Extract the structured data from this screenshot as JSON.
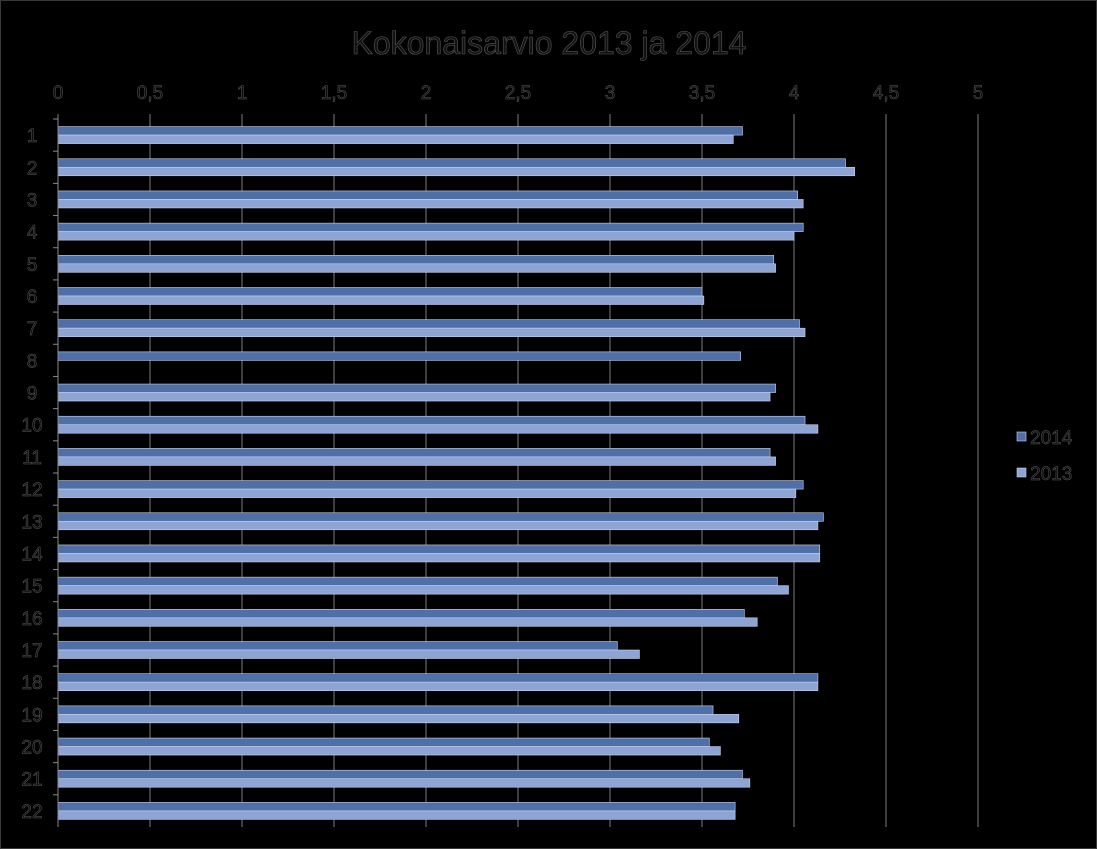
{
  "chart_data": {
    "type": "bar",
    "orientation": "horizontal",
    "title": "Kokonaisarvio 2013 ja 2014",
    "xlabel": "",
    "ylabel": "",
    "xlim": [
      0,
      5
    ],
    "x_ticks": [
      "0",
      "0,5",
      "1",
      "1,5",
      "2",
      "2,5",
      "3",
      "3,5",
      "4",
      "4,5",
      "5"
    ],
    "grid": true,
    "legend_position": "right",
    "categories": [
      "1",
      "2",
      "3",
      "4",
      "5",
      "6",
      "7",
      "8",
      "9",
      "10",
      "11",
      "12",
      "13",
      "14",
      "15",
      "16",
      "17",
      "18",
      "19",
      "20",
      "21",
      "22"
    ],
    "series": [
      {
        "name": "2014",
        "color": "#4f6fa8",
        "values": [
          3.72,
          4.28,
          4.02,
          4.05,
          3.89,
          3.5,
          4.03,
          3.71,
          3.9,
          4.06,
          3.87,
          4.05,
          4.16,
          4.14,
          3.91,
          3.73,
          3.04,
          4.13,
          3.56,
          3.54,
          3.72,
          3.68
        ]
      },
      {
        "name": "2013",
        "color": "#8da4d4",
        "values": [
          3.67,
          4.33,
          4.05,
          4.0,
          3.9,
          3.51,
          4.06,
          null,
          3.87,
          4.13,
          3.9,
          4.01,
          4.13,
          4.14,
          3.97,
          3.8,
          3.16,
          4.13,
          3.7,
          3.6,
          3.76,
          3.68
        ]
      }
    ]
  }
}
